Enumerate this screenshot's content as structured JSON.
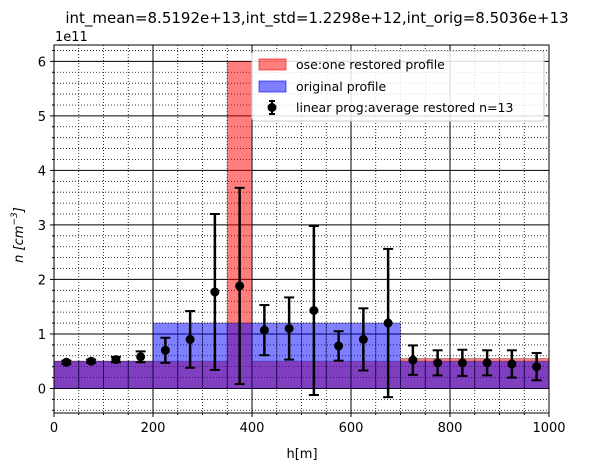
{
  "chart_data": {
    "type": "bar",
    "title": "int_mean=8.5192e+13,int_std=1.2298e+12,int_orig=8.5036e+13",
    "xlabel": "h[m]",
    "ylabel_prefix": "n [cm",
    "ylabel_exp": "−3",
    "ylabel_suffix": "]",
    "y_offset_label": "1e11",
    "xlim": [
      0,
      1000
    ],
    "ylim": [
      -0.45,
      6.3
    ],
    "x_ticks": [
      0,
      200,
      400,
      600,
      800,
      1000
    ],
    "y_ticks": [
      0,
      1,
      2,
      3,
      4,
      5,
      6
    ],
    "grid": true,
    "legend_position": "top-right",
    "colors": {
      "restored": "#ff0000",
      "original": "#0000ff",
      "errorbar": "#000000"
    },
    "series": [
      {
        "name": "ose:one restored profile",
        "kind": "bar",
        "x": [
          25,
          75,
          125,
          175,
          225,
          275,
          325,
          375,
          425,
          475,
          525,
          575,
          625,
          675,
          725,
          775,
          825,
          875,
          925,
          975
        ],
        "width": 50,
        "values": [
          0.5,
          0.5,
          0.5,
          0.5,
          0.5,
          0.5,
          0.5,
          6.0,
          0.5,
          0.5,
          0.5,
          0.5,
          0.5,
          0.5,
          0.55,
          0.55,
          0.55,
          0.55,
          0.55,
          0.55
        ]
      },
      {
        "name": "original profile",
        "kind": "bar",
        "x": [
          25,
          75,
          125,
          175,
          225,
          275,
          325,
          375,
          425,
          475,
          525,
          575,
          625,
          675,
          725,
          775,
          825,
          875,
          925,
          975
        ],
        "width": 50,
        "values": [
          0.5,
          0.5,
          0.5,
          0.5,
          1.2,
          1.2,
          1.2,
          1.2,
          1.2,
          1.2,
          1.2,
          1.2,
          1.2,
          1.2,
          0.5,
          0.5,
          0.5,
          0.5,
          0.5,
          0.5
        ]
      },
      {
        "name": "linear prog:average restored n=13",
        "kind": "errorbar",
        "x": [
          25,
          75,
          125,
          175,
          225,
          275,
          325,
          375,
          425,
          475,
          525,
          575,
          625,
          675,
          725,
          775,
          825,
          875,
          925,
          975
        ],
        "values": [
          0.48,
          0.5,
          0.53,
          0.58,
          0.7,
          0.9,
          1.77,
          1.88,
          1.07,
          1.1,
          1.43,
          0.78,
          0.9,
          1.2,
          0.52,
          0.47,
          0.47,
          0.47,
          0.45,
          0.4
        ],
        "errors": [
          0.03,
          0.03,
          0.05,
          0.1,
          0.23,
          0.52,
          1.43,
          1.8,
          0.46,
          0.57,
          1.55,
          0.27,
          0.57,
          1.36,
          0.27,
          0.23,
          0.24,
          0.23,
          0.25,
          0.25
        ]
      }
    ]
  }
}
